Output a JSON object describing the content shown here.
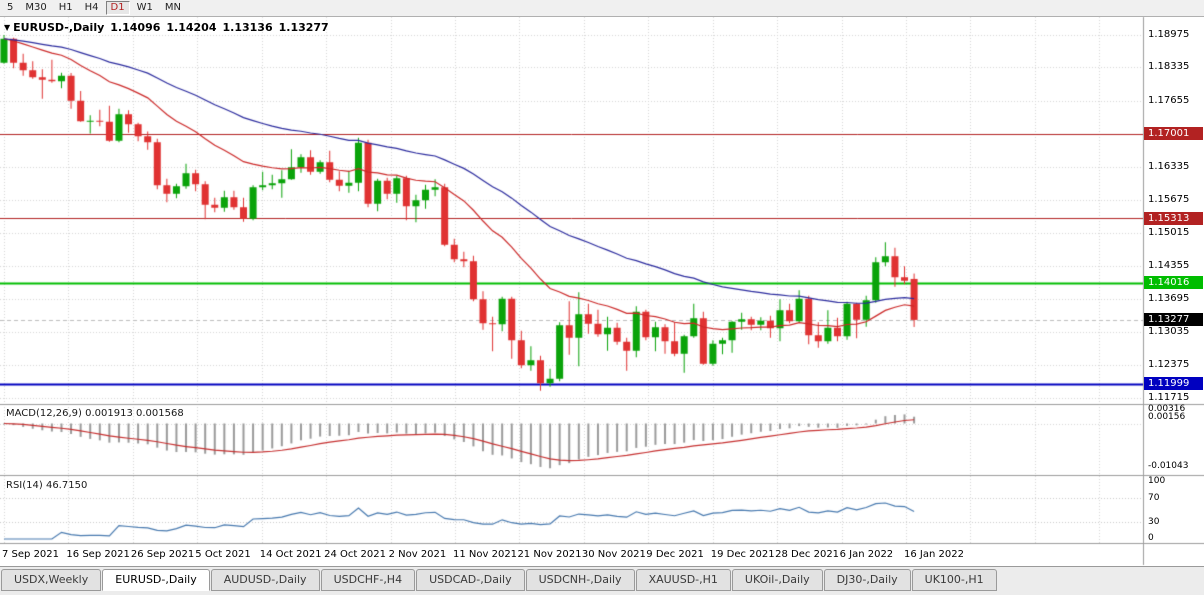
{
  "toolbar": {
    "active": "D1",
    "items": [
      "5",
      "M30",
      "H1",
      "H4",
      "D1",
      "W1",
      "MN"
    ]
  },
  "chart_data": {
    "type": "candlestick",
    "symbol": "EURUSD-",
    "timeframe": "Daily",
    "legend": {
      "marker": "▼",
      "title": "EURUSD-,Daily",
      "open": "1.14096",
      "high": "1.14204",
      "low": "1.13136",
      "close": "1.13277"
    },
    "price_range": [
      1.115,
      1.1925
    ],
    "price_ticks": [
      "1.18975",
      "1.18335",
      "1.17655",
      "1.16335",
      "1.15675",
      "1.15015",
      "1.14355",
      "1.13695",
      "1.13035",
      "1.12375",
      "1.11715"
    ],
    "levels": [
      {
        "name": "resistance-upper",
        "value": "1.17001",
        "price": 1.17001,
        "color": "#b22222",
        "line": "solid",
        "width": 1
      },
      {
        "name": "resistance-lower",
        "value": "1.15313",
        "price": 1.15313,
        "color": "#b22222",
        "line": "solid",
        "width": 1
      },
      {
        "name": "support-green",
        "value": "1.14016",
        "price": 1.14016,
        "color": "#00bd00",
        "line": "solid",
        "width": 2
      },
      {
        "name": "current-price",
        "value": "1.13277",
        "price": 1.13277,
        "color": "#000000",
        "line": "dashed",
        "line_color": "#bdbdbd",
        "width": 1
      },
      {
        "name": "support-blue",
        "value": "1.11999",
        "price": 1.11999,
        "color": "#0000c0",
        "line": "solid",
        "width": 2
      }
    ],
    "date_labels": [
      "7 Sep 2021",
      "16 Sep 2021",
      "26 Sep 2021",
      "5 Oct 2021",
      "14 Oct 2021",
      "24 Oct 2021",
      "2 Nov 2021",
      "11 Nov 2021",
      "21 Nov 2021",
      "30 Nov 2021",
      "9 Dec 2021",
      "19 Dec 2021",
      "28 Dec 2021",
      "6 Jan 2022",
      "16 Jan 2022"
    ],
    "moving_averages": [
      {
        "name": "ma-fast",
        "period": 20,
        "color": "#cc2929"
      },
      {
        "name": "ma-slow",
        "period": 45,
        "color": "#2b2b9e"
      }
    ],
    "indicators": {
      "macd": {
        "label": "MACD(12,26,9) 0.001913 0.001568",
        "params": [
          12,
          26,
          9
        ],
        "values_shown": [
          "0.001913",
          "0.001568"
        ],
        "axis": [
          "0.00316",
          "0.00156",
          "-0.01043"
        ]
      },
      "rsi": {
        "label": "RSI(14) 46.7150",
        "period": 14,
        "value": "46.7150",
        "axis": [
          "100",
          "70",
          "30",
          "0"
        ],
        "levels": [
          70,
          30
        ]
      }
    },
    "colors": {
      "up": "#0aa30a",
      "down": "#e03232",
      "grid": "#d6d6d6",
      "macd_hist": "#9b9b9b",
      "macd_signal": "#c62f2f",
      "rsi": "#4779af"
    },
    "candles": [
      [
        1.1842,
        1.18975,
        1.184,
        1.189
      ],
      [
        1.189,
        1.1892,
        1.1831,
        1.1842
      ],
      [
        1.1842,
        1.186,
        1.1816,
        1.1827
      ],
      [
        1.1827,
        1.1845,
        1.181,
        1.1813
      ],
      [
        1.1813,
        1.1829,
        1.177,
        1.1808
      ],
      [
        1.1808,
        1.1848,
        1.1802,
        1.1805
      ],
      [
        1.1805,
        1.1822,
        1.1791,
        1.1816
      ],
      [
        1.1816,
        1.18215,
        1.175,
        1.1766
      ],
      [
        1.1766,
        1.17855,
        1.1724,
        1.1725
      ],
      [
        1.1725,
        1.1737,
        1.17005,
        1.1726
      ],
      [
        1.1726,
        1.1748,
        1.1715,
        1.1724
      ],
      [
        1.1724,
        1.1756,
        1.1684,
        1.1686
      ],
      [
        1.1686,
        1.175,
        1.1683,
        1.1739
      ],
      [
        1.1739,
        1.1747,
        1.1702,
        1.1719
      ],
      [
        1.1719,
        1.1722,
        1.1685,
        1.1695
      ],
      [
        1.1695,
        1.17045,
        1.1668,
        1.1683
      ],
      [
        1.1683,
        1.169,
        1.1589,
        1.1597
      ],
      [
        1.1597,
        1.161,
        1.1563,
        1.158
      ],
      [
        1.158,
        1.16,
        1.1571,
        1.1595
      ],
      [
        1.1595,
        1.164,
        1.159,
        1.1621
      ],
      [
        1.1621,
        1.1628,
        1.1585,
        1.1599
      ],
      [
        1.1599,
        1.1605,
        1.1529,
        1.1558
      ],
      [
        1.1558,
        1.1572,
        1.1543,
        1.1552
      ],
      [
        1.1552,
        1.1586,
        1.1544,
        1.1573
      ],
      [
        1.1573,
        1.1586,
        1.1548,
        1.1553
      ],
      [
        1.1553,
        1.1572,
        1.1524,
        1.153
      ],
      [
        1.153,
        1.1597,
        1.1527,
        1.1593
      ],
      [
        1.1593,
        1.1624,
        1.1587,
        1.1597
      ],
      [
        1.1597,
        1.1618,
        1.1589,
        1.1601
      ],
      [
        1.1601,
        1.1627,
        1.1572,
        1.1609
      ],
      [
        1.1609,
        1.1669,
        1.1608,
        1.1633
      ],
      [
        1.1633,
        1.1659,
        1.1622,
        1.1653
      ],
      [
        1.1653,
        1.1667,
        1.1618,
        1.1624
      ],
      [
        1.1624,
        1.1647,
        1.162,
        1.1643
      ],
      [
        1.1643,
        1.1666,
        1.1603,
        1.1608
      ],
      [
        1.1608,
        1.1625,
        1.1585,
        1.1596
      ],
      [
        1.1596,
        1.1626,
        1.1582,
        1.1602
      ],
      [
        1.1602,
        1.1692,
        1.1585,
        1.1682
      ],
      [
        1.1682,
        1.1688,
        1.1553,
        1.156
      ],
      [
        1.156,
        1.161,
        1.1545,
        1.1606
      ],
      [
        1.1606,
        1.1612,
        1.1569,
        1.158
      ],
      [
        1.158,
        1.1616,
        1.1562,
        1.1611
      ],
      [
        1.1611,
        1.1616,
        1.1527,
        1.1555
      ],
      [
        1.1555,
        1.1578,
        1.1523,
        1.1567
      ],
      [
        1.1567,
        1.1598,
        1.155,
        1.1588
      ],
      [
        1.1588,
        1.1609,
        1.1575,
        1.1593
      ],
      [
        1.1593,
        1.16,
        1.1475,
        1.1478
      ],
      [
        1.1478,
        1.149,
        1.1443,
        1.1449
      ],
      [
        1.1449,
        1.1464,
        1.1433,
        1.1445
      ],
      [
        1.1445,
        1.1456,
        1.1365,
        1.1369
      ],
      [
        1.1369,
        1.1385,
        1.1308,
        1.1321
      ],
      [
        1.1321,
        1.1334,
        1.1265,
        1.1319
      ],
      [
        1.1319,
        1.1374,
        1.1305,
        1.137
      ],
      [
        1.137,
        1.1374,
        1.125,
        1.1287
      ],
      [
        1.1287,
        1.1306,
        1.1231,
        1.1237
      ],
      [
        1.1237,
        1.1275,
        1.1226,
        1.1247
      ],
      [
        1.1247,
        1.1256,
        1.1186,
        1.1201
      ],
      [
        1.1201,
        1.123,
        1.1194,
        1.121
      ],
      [
        1.121,
        1.1323,
        1.1205,
        1.1317
      ],
      [
        1.1317,
        1.1365,
        1.1258,
        1.1292
      ],
      [
        1.1292,
        1.1383,
        1.1235,
        1.1339
      ],
      [
        1.1339,
        1.136,
        1.13,
        1.132
      ],
      [
        1.132,
        1.1348,
        1.1294,
        1.1299
      ],
      [
        1.1299,
        1.1334,
        1.1266,
        1.1312
      ],
      [
        1.1312,
        1.1322,
        1.1278,
        1.1284
      ],
      [
        1.1284,
        1.1292,
        1.1226,
        1.1266
      ],
      [
        1.1266,
        1.1355,
        1.1253,
        1.1344
      ],
      [
        1.1344,
        1.1348,
        1.1287,
        1.1293
      ],
      [
        1.1293,
        1.1324,
        1.1265,
        1.1313
      ],
      [
        1.1313,
        1.1319,
        1.126,
        1.1285
      ],
      [
        1.1285,
        1.1323,
        1.1255,
        1.126
      ],
      [
        1.126,
        1.1298,
        1.1222,
        1.1295
      ],
      [
        1.1295,
        1.136,
        1.1292,
        1.1331
      ],
      [
        1.1331,
        1.1344,
        1.1238,
        1.124
      ],
      [
        1.124,
        1.1287,
        1.1236,
        1.128
      ],
      [
        1.128,
        1.1292,
        1.1259,
        1.1287
      ],
      [
        1.1287,
        1.1325,
        1.1262,
        1.1324
      ],
      [
        1.1324,
        1.1342,
        1.1308,
        1.1329
      ],
      [
        1.1329,
        1.1334,
        1.1307,
        1.1318
      ],
      [
        1.1318,
        1.1333,
        1.1307,
        1.1326
      ],
      [
        1.1326,
        1.1336,
        1.1292,
        1.1311
      ],
      [
        1.1311,
        1.1369,
        1.1285,
        1.1347
      ],
      [
        1.1347,
        1.136,
        1.1321,
        1.1325
      ],
      [
        1.1325,
        1.1387,
        1.1322,
        1.137
      ],
      [
        1.137,
        1.1376,
        1.1279,
        1.1297
      ],
      [
        1.1297,
        1.1323,
        1.1272,
        1.1285
      ],
      [
        1.1285,
        1.1347,
        1.128,
        1.1312
      ],
      [
        1.1312,
        1.1332,
        1.1285,
        1.1295
      ],
      [
        1.1295,
        1.1364,
        1.1288,
        1.136
      ],
      [
        1.136,
        1.1362,
        1.1291,
        1.1328
      ],
      [
        1.1328,
        1.1376,
        1.1314,
        1.1367
      ],
      [
        1.1367,
        1.1453,
        1.1362,
        1.1443
      ],
      [
        1.1443,
        1.1483,
        1.1435,
        1.1455
      ],
      [
        1.1455,
        1.1472,
        1.1394,
        1.1413
      ],
      [
        1.1413,
        1.1435,
        1.1399,
        1.1406
      ],
      [
        1.14096,
        1.14204,
        1.13136,
        1.13277
      ]
    ]
  },
  "tabs": {
    "active": "EURUSD-,Daily",
    "items": [
      "USDX,Weekly",
      "EURUSD-,Daily",
      "AUDUSD-,Daily",
      "USDCHF-,H4",
      "USDCAD-,Daily",
      "USDCNH-,Daily",
      "XAUUSD-,H1",
      "UKOil-,Daily",
      "DJ30-,Daily",
      "UK100-,H1"
    ]
  }
}
